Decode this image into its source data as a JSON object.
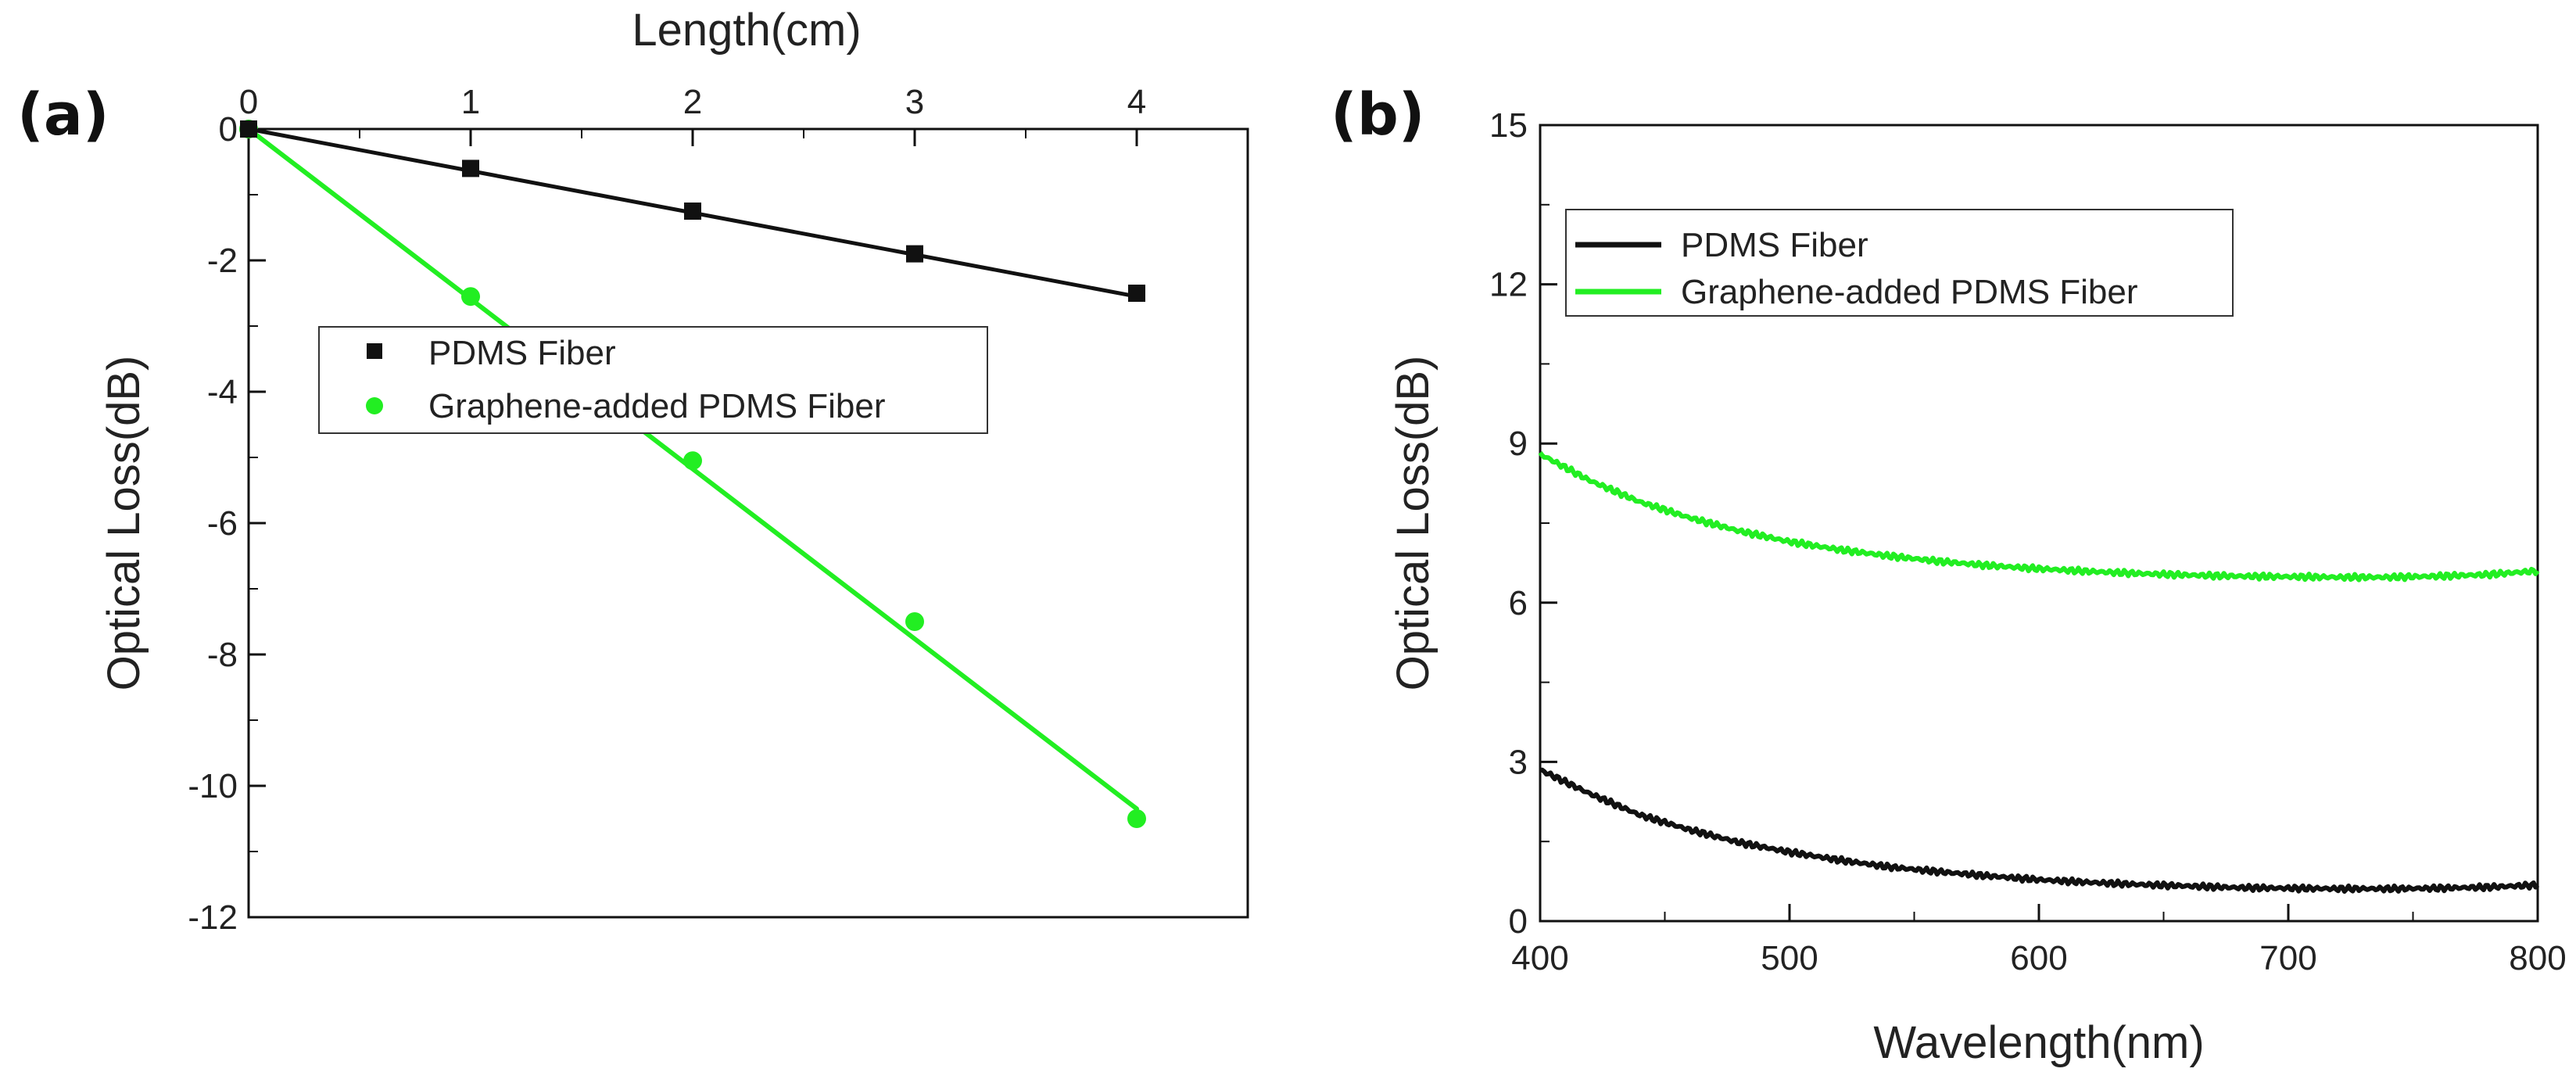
{
  "chart_data": [
    {
      "panel_label": "(a)",
      "type": "scatter",
      "title": "",
      "xlabel": "Length(cm)",
      "ylabel": "Optical Loss(dB)",
      "xlim": [
        0,
        4.5
      ],
      "ylim": [
        -12,
        0
      ],
      "xticks": [
        0,
        1,
        2,
        3,
        4
      ],
      "yticks": [
        0,
        -2,
        -4,
        -6,
        -8,
        -10,
        -12
      ],
      "x_axis_position": "top",
      "legend": {
        "position": "center-left",
        "entries": [
          "PDMS Fiber",
          "Graphene-added PDMS Fiber"
        ]
      },
      "series": [
        {
          "name": "PDMS Fiber",
          "marker": "square",
          "color": "#111111",
          "x": [
            0,
            1,
            2,
            3,
            4
          ],
          "y": [
            0,
            -0.6,
            -1.25,
            -1.9,
            -2.5
          ],
          "fit_line": {
            "x": [
              0,
              4
            ],
            "y": [
              0,
              -2.55
            ]
          }
        },
        {
          "name": "Graphene-added PDMS Fiber",
          "marker": "circle",
          "color": "#22ee22",
          "x": [
            0,
            1,
            2,
            3,
            4
          ],
          "y": [
            0,
            -2.55,
            -5.05,
            -7.5,
            -10.5
          ],
          "fit_line": {
            "x": [
              0,
              4
            ],
            "y": [
              0,
              -10.35
            ]
          }
        }
      ]
    },
    {
      "panel_label": "(b)",
      "type": "line",
      "title": "",
      "xlabel": "Wavelength(nm)",
      "ylabel": "Optical Loss(dB)",
      "xlim": [
        400,
        800
      ],
      "ylim": [
        0,
        15
      ],
      "xticks": [
        400,
        500,
        600,
        700,
        800
      ],
      "yticks": [
        0,
        3,
        6,
        9,
        12,
        15
      ],
      "legend": {
        "position": "top-left",
        "entries": [
          "PDMS Fiber",
          "Graphene-added PDMS Fiber"
        ]
      },
      "series": [
        {
          "name": "PDMS Fiber",
          "color": "#111111",
          "x": [
            400,
            420,
            440,
            460,
            480,
            500,
            520,
            540,
            560,
            580,
            600,
            620,
            640,
            660,
            680,
            700,
            720,
            740,
            760,
            780,
            800
          ],
          "y": [
            2.85,
            2.4,
            2.0,
            1.72,
            1.48,
            1.3,
            1.15,
            1.02,
            0.93,
            0.85,
            0.78,
            0.73,
            0.69,
            0.66,
            0.63,
            0.62,
            0.61,
            0.61,
            0.62,
            0.64,
            0.68
          ]
        },
        {
          "name": "Graphene-added PDMS Fiber",
          "color": "#22ee22",
          "x": [
            400,
            420,
            440,
            460,
            480,
            500,
            520,
            540,
            560,
            580,
            600,
            620,
            640,
            660,
            680,
            700,
            720,
            740,
            760,
            780,
            800
          ],
          "y": [
            8.8,
            8.3,
            7.9,
            7.6,
            7.35,
            7.15,
            7.0,
            6.88,
            6.78,
            6.7,
            6.64,
            6.59,
            6.55,
            6.52,
            6.5,
            6.49,
            6.48,
            6.48,
            6.5,
            6.53,
            6.6
          ]
        }
      ]
    }
  ]
}
